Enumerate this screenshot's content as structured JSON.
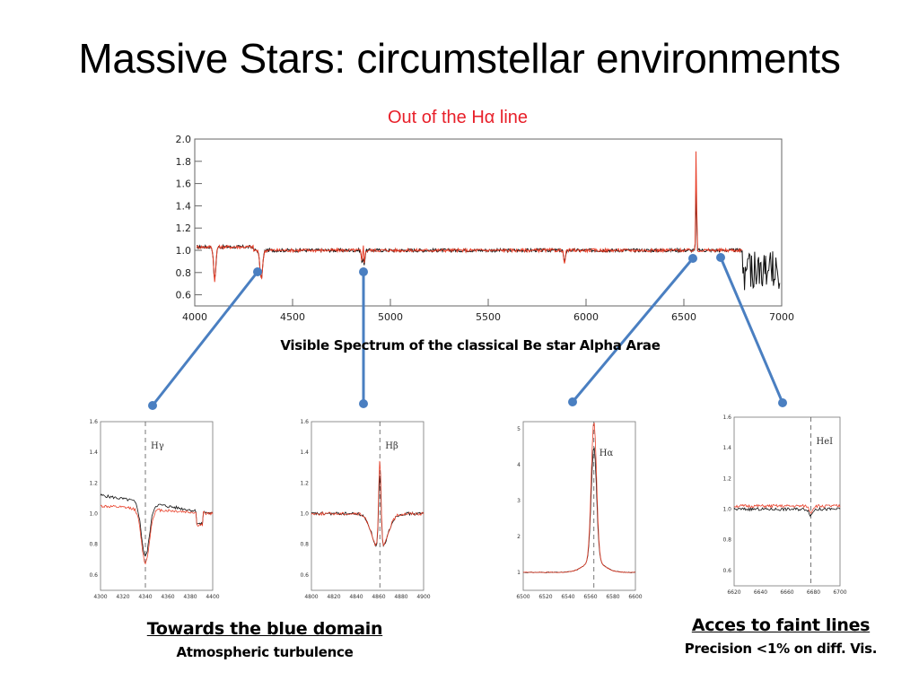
{
  "slide": {
    "title": "Massive Stars: circumstellar environments",
    "subtitle": "Out of the Hα line",
    "caption": "Visible Spectrum of the classical Be star Alpha Arae",
    "notes": [
      {
        "heading": "Towards the blue domain",
        "text": "Atmospheric turbulence"
      },
      {
        "heading": "Acces to faint lines",
        "text": "Precision <1% on diff. Vis."
      }
    ]
  },
  "colors": {
    "red_spectrum": "#e8402a",
    "black_spectrum": "#111111",
    "connector": "#4a7fc1",
    "subtitle": "#e8202a"
  },
  "chart_data": [
    {
      "type": "line",
      "title": "",
      "xlabel": "",
      "ylabel": "",
      "xlim": [
        4000,
        7000
      ],
      "ylim": [
        0.5,
        2.0
      ],
      "x_ticks": [
        "4000",
        "4500",
        "5000",
        "5500",
        "6000",
        "6500",
        "7000"
      ],
      "y_ticks": [
        "0.6",
        "0.8",
        "1.0",
        "1.2",
        "1.4",
        "1.6",
        "1.8",
        "2.0"
      ],
      "lines": [
        {
          "x": 4102,
          "depth": 0.3,
          "w": 8
        },
        {
          "x": 4340,
          "depth": 0.25,
          "w": 10
        },
        {
          "x": 4861,
          "depth": 0.25,
          "w": 8,
          "emission": 0.32
        },
        {
          "x": 5890,
          "depth": 0.12,
          "w": 6
        },
        {
          "x": 6563,
          "depth": 0.0,
          "w": 6,
          "emission": 1.0
        }
      ],
      "series": [
        {
          "name": "",
          "color": "#111111"
        },
        {
          "name": "",
          "color": "#e8402a"
        }
      ]
    },
    {
      "type": "line",
      "line_label": "Hγ",
      "xlim": [
        4300,
        4400
      ],
      "ylim": [
        0.5,
        1.6
      ],
      "x_ticks": [
        "4300",
        "4320",
        "4340",
        "4360",
        "4380",
        "4400"
      ],
      "y_ticks": [
        "0.6",
        "0.8",
        "1.0",
        "1.2",
        "1.4",
        "1.6"
      ],
      "center": 4340
    },
    {
      "type": "line",
      "line_label": "Hβ",
      "xlim": [
        4800,
        4900
      ],
      "ylim": [
        0.5,
        1.6
      ],
      "x_ticks": [
        "4800",
        "4820",
        "4840",
        "4860",
        "4880",
        "4900"
      ],
      "y_ticks": [
        "0.6",
        "0.8",
        "1.0",
        "1.2",
        "1.4",
        "1.6"
      ],
      "center": 4861
    },
    {
      "type": "line",
      "line_label": "Hα",
      "xlim": [
        6500,
        6600
      ],
      "ylim": [
        0.5,
        5.2
      ],
      "x_ticks": [
        "6500",
        "6520",
        "6540",
        "6560",
        "6580",
        "6600"
      ],
      "y_ticks": [
        "1",
        "2",
        "3",
        "4",
        "5"
      ],
      "center": 6563
    },
    {
      "type": "line",
      "line_label": "HeI",
      "xlim": [
        6620,
        6700
      ],
      "ylim": [
        0.5,
        1.6
      ],
      "x_ticks": [
        "6620",
        "6640",
        "6660",
        "6680",
        "6700"
      ],
      "y_ticks": [
        "0.6",
        "0.8",
        "1.0",
        "1.2",
        "1.4",
        "1.6"
      ],
      "center": 6678
    }
  ]
}
